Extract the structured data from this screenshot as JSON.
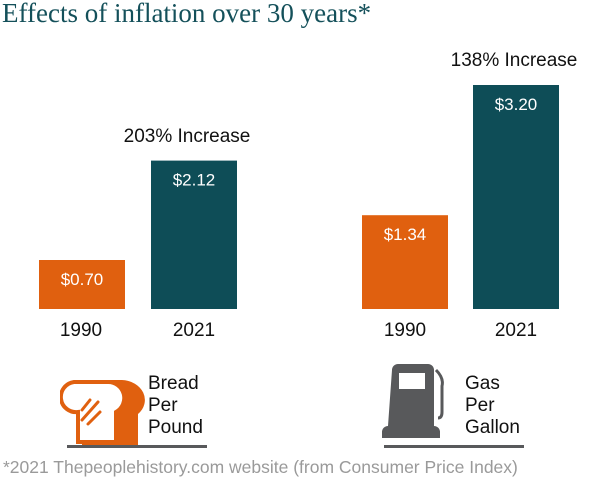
{
  "title": "Effects of inflation over 30 years*",
  "footnote": "*2021 Thepeoplehistory.com website (from Consumer Price Index)",
  "colors": {
    "title": "#14505a",
    "bar_1990": "#e0600f",
    "bar_2021": "#0e4d57",
    "icon_gas": "#58595b"
  },
  "chart_data": [
    {
      "type": "bar",
      "category": "Bread Per Pound",
      "category_lines": [
        "Bread",
        "Per",
        "Pound"
      ],
      "icon": "bread-toast-icon",
      "categories": [
        "1990",
        "2021"
      ],
      "values": [
        0.7,
        2.12
      ],
      "value_labels": [
        "$0.70",
        "$2.12"
      ],
      "annotation": "203% Increase"
    },
    {
      "type": "bar",
      "category": "Gas Per Gallon",
      "category_lines": [
        "Gas",
        "Per",
        "Gallon"
      ],
      "icon": "gas-pump-icon",
      "categories": [
        "1990",
        "2021"
      ],
      "values": [
        1.34,
        3.2
      ],
      "value_labels": [
        "$1.34",
        "$3.20"
      ],
      "annotation": "138% Increase"
    }
  ]
}
